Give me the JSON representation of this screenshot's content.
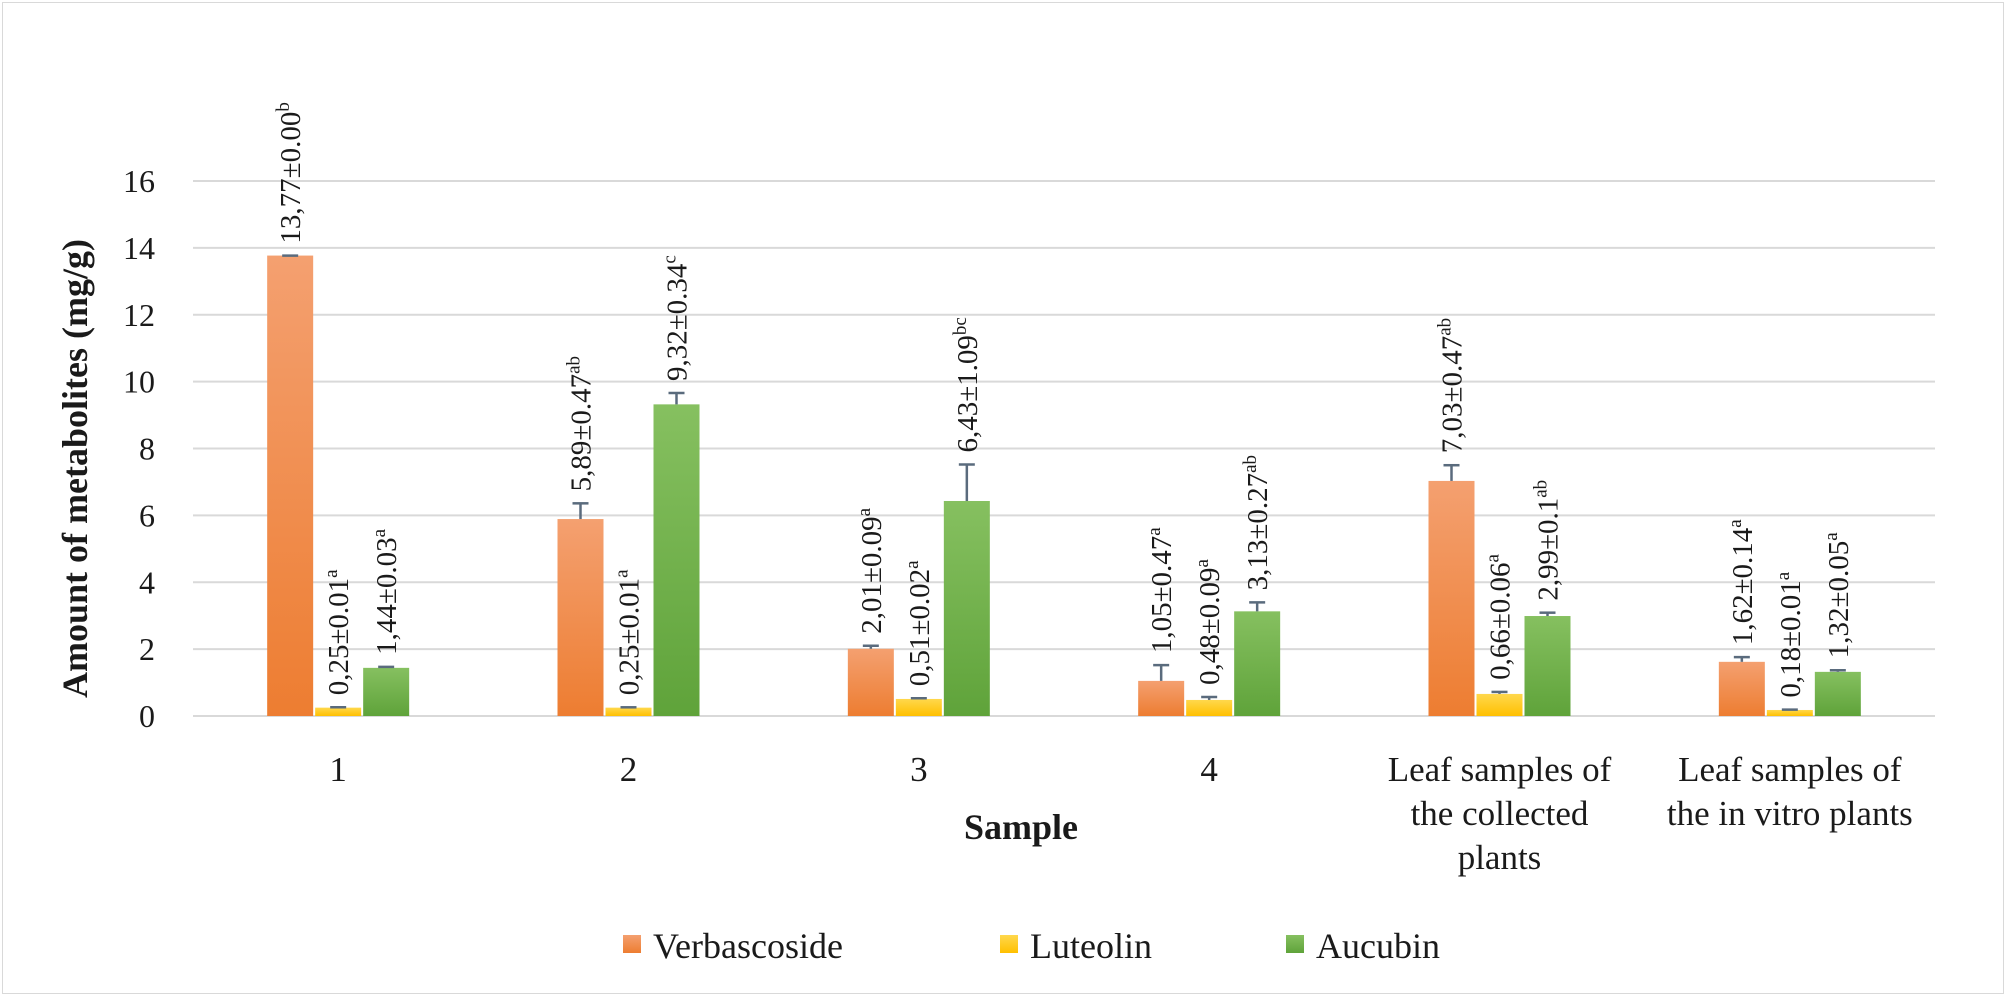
{
  "chart_data": {
    "type": "bar",
    "categories": [
      [
        "1"
      ],
      [
        "2"
      ],
      [
        "3"
      ],
      [
        "4"
      ],
      [
        "Leaf samples of",
        "the collected",
        "plants"
      ],
      [
        "Leaf samples of",
        "the in vitro plants"
      ]
    ],
    "xlabel": "Sample",
    "ylabel": "Amount of metabolites (mg/g)",
    "ylim": [
      0,
      16
    ],
    "yticks": [
      0,
      2,
      4,
      6,
      8,
      10,
      12,
      14,
      16
    ],
    "grid": true,
    "legend_position": "bottom",
    "series": [
      {
        "name": "Verbascoside",
        "color": "#ed7d31",
        "color_light": "#f4a070",
        "values": [
          13.77,
          5.89,
          2.01,
          1.05,
          7.03,
          1.62
        ],
        "errors": [
          0.0,
          0.47,
          0.09,
          0.47,
          0.47,
          0.14
        ],
        "labels": [
          "13,77±0.00",
          "5,89±0.47",
          "2,01±0.09",
          "1,05±0.47",
          "7,03±0.47",
          "1,62±0.14"
        ],
        "letters": [
          "b",
          "ab",
          "a",
          "a",
          "ab",
          "a"
        ]
      },
      {
        "name": "Luteolin",
        "color": "#ffc000",
        "color_light": "#ffd84d",
        "values": [
          0.25,
          0.25,
          0.51,
          0.48,
          0.66,
          0.18
        ],
        "errors": [
          0.01,
          0.01,
          0.02,
          0.09,
          0.06,
          0.01
        ],
        "labels": [
          "0,25±0.01",
          "0,25±0.01",
          "0,51±0.02",
          "0,48±0.09",
          "0,66±0.06",
          "0,18±0.01"
        ],
        "letters": [
          "a",
          "a",
          "a",
          "a",
          "a",
          "a"
        ]
      },
      {
        "name": "Aucubin",
        "color": "#5fa33a",
        "color_light": "#86c060",
        "values": [
          1.44,
          9.32,
          6.43,
          3.13,
          2.99,
          1.32
        ],
        "errors": [
          0.03,
          0.34,
          1.09,
          0.27,
          0.1,
          0.05
        ],
        "labels": [
          "1,44±0.03",
          "9,32±0.34",
          "6,43±1.09",
          "3,13±0.27",
          "2,99±0.1",
          "1,32±0.05"
        ],
        "letters": [
          "a",
          "c",
          "bc",
          "ab",
          "ab",
          "a"
        ]
      }
    ],
    "error_bar_color": "#5a6b7d"
  }
}
